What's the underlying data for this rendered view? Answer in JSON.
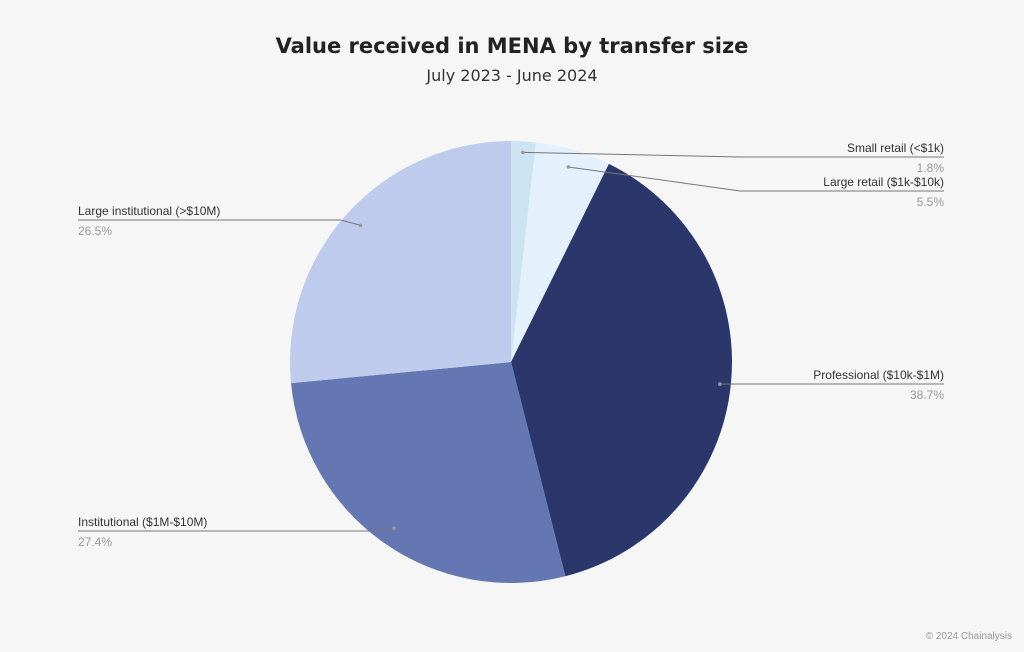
{
  "title": "Value received in MENA by transfer size",
  "subtitle": "July 2023 - June 2024",
  "credit": "© 2024 Chainalysis",
  "chart_data": {
    "type": "pie",
    "title": "Value received in MENA by transfer size",
    "subtitle": "July 2023 - June 2024",
    "slices": [
      {
        "label": "Small retail (<$1k)",
        "value": 1.8,
        "display": "1.8%",
        "color": "#cce4f2"
      },
      {
        "label": "Large retail ($1k-$10k)",
        "value": 5.5,
        "display": "5.5%",
        "color": "#e4f0fb"
      },
      {
        "label": "Professional ($10k-$1M)",
        "value": 38.7,
        "display": "38.7%",
        "color": "#2b376b"
      },
      {
        "label": "Institutional ($1M-$10M)",
        "value": 27.4,
        "display": "27.4%",
        "color": "#6577b3"
      },
      {
        "label": "Large institutional (>$10M)",
        "value": 26.5,
        "display": "26.5%",
        "color": "#bfcbec"
      }
    ],
    "start_angle": "12 o'clock",
    "direction": "clockwise",
    "legend": "none"
  }
}
